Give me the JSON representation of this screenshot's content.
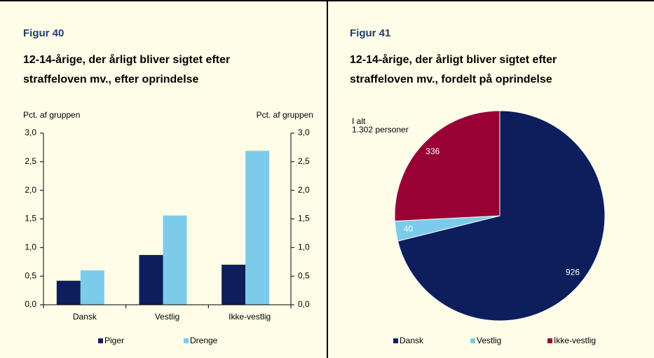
{
  "chart_data": [
    {
      "type": "bar",
      "heading": "Figur 40",
      "title": [
        "12-14-årige, der årligt bliver sigtet efter",
        "straffeloven mv., efter oprindelse"
      ],
      "ylabel": "Pct. af gruppen",
      "y2label": "Pct. af gruppen",
      "categories": [
        "Dansk",
        "Vestlig",
        "Ikke-vestlig"
      ],
      "series": [
        {
          "name": "Piger",
          "color": "#0c1e5b",
          "values": [
            0.42,
            0.87,
            0.7
          ]
        },
        {
          "name": "Drenge",
          "color": "#7ccbea",
          "values": [
            0.6,
            1.56,
            2.69
          ]
        }
      ],
      "ylim": [
        0,
        3
      ],
      "yticks": [
        {
          "value": 0,
          "label": "0,0"
        },
        {
          "value": 0.5,
          "label": "0,5"
        },
        {
          "value": 1,
          "label": "1,0"
        },
        {
          "value": 1.5,
          "label": "1,5"
        },
        {
          "value": 2,
          "label": "2,0"
        },
        {
          "value": 2.5,
          "label": "2,5"
        },
        {
          "value": 3,
          "label": "3,0"
        }
      ],
      "y2lim": [
        0,
        3
      ],
      "y2ticks": [
        {
          "value": 0,
          "label": "0,0"
        },
        {
          "value": 0.5,
          "label": "0,5"
        },
        {
          "value": 1,
          "label": "1,0"
        },
        {
          "value": 1.5,
          "label": "1,5"
        },
        {
          "value": 2,
          "label": "2,0"
        },
        {
          "value": 2.5,
          "label": "2,5"
        },
        {
          "value": 3,
          "label": "3,0"
        }
      ]
    },
    {
      "type": "pie",
      "heading": "Figur 41",
      "title": [
        "12-14-årige, der årligt bliver sigtet efter",
        "straffeloven mv., fordelt på oprindelse"
      ],
      "annotation": [
        "I alt",
        "1.302 personer"
      ],
      "categories": [
        "Dansk",
        "Vestlig",
        "Ikke-vestlig"
      ],
      "values": [
        926,
        40,
        336
      ],
      "colors": [
        "#0c1e5b",
        "#7ccbea",
        "#990033"
      ]
    }
  ]
}
